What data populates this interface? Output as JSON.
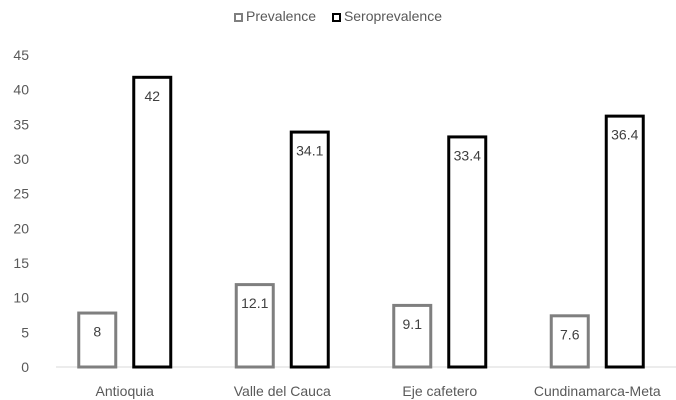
{
  "chart_data": {
    "type": "bar",
    "categories": [
      "Antioquia",
      "Valle del Cauca",
      "Eje cafetero",
      "Cundinamarca-Meta"
    ],
    "series": [
      {
        "name": "Prevalence",
        "values": [
          8,
          12.1,
          9.1,
          7.6
        ],
        "color": "#7f7f7f"
      },
      {
        "name": "Seroprevalence",
        "values": [
          42,
          34.1,
          33.4,
          36.4
        ],
        "color": "#000000"
      }
    ],
    "data_labels": [
      [
        "8",
        "12.1",
        "9.1",
        "7.6"
      ],
      [
        "42",
        "34.1",
        "33.4",
        "36.4"
      ]
    ],
    "y_ticks": [
      "0",
      "5",
      "10",
      "15",
      "20",
      "25",
      "30",
      "35",
      "40",
      "45"
    ],
    "ylim": [
      0,
      45
    ],
    "title": "",
    "xlabel": "",
    "ylabel": "",
    "grid": false,
    "legend_position": "top"
  }
}
